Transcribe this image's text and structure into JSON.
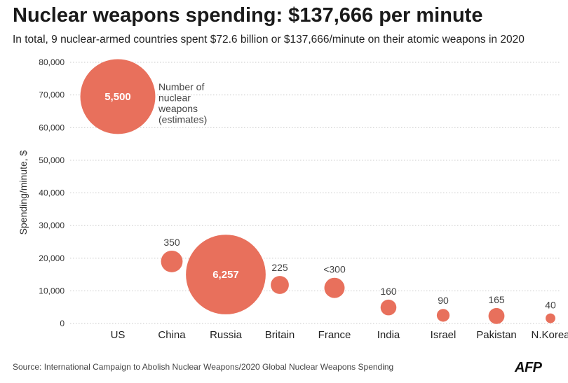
{
  "header": {
    "title": "Nuclear weapons spending: $137,666 per minute",
    "subtitle": "In total, 9 nuclear-armed countries spent $72.6 billion or $137,666/minute on their atomic weapons in 2020"
  },
  "footer": {
    "source": "Source: International Campaign to Abolish Nuclear Weapons/2020 Global Nuclear Weapons Spending",
    "logo": "AFP"
  },
  "chart_data": {
    "type": "scatter",
    "title": "Nuclear weapons spending: $137,666 per minute",
    "subtitle": "In total, 9 nuclear-armed countries spent $72.6 billion or $137,666/minute on their atomic weapons in 2020",
    "xlabel": "",
    "ylabel": "Spending/minute, $",
    "ylim": [
      0,
      80000
    ],
    "yticks": [
      0,
      10000,
      20000,
      30000,
      40000,
      50000,
      60000,
      70000,
      80000
    ],
    "ytick_labels": [
      "0",
      "10,000",
      "20,000",
      "30,000",
      "40,000",
      "50,000",
      "60,000",
      "70,000",
      "80,000"
    ],
    "grid": "horizontal dotted",
    "bubble_color": "#e8705c",
    "size_legend": "Number of nuclear weapons (estimates)",
    "size_legend_lines": [
      "Number of",
      "nuclear",
      "weapons",
      "(estimates)"
    ],
    "categories": [
      "US",
      "China",
      "Russia",
      "Britain",
      "France",
      "India",
      "Israel",
      "Pakistan",
      "N.Korea"
    ],
    "values": [
      69500,
      19000,
      15000,
      11800,
      10900,
      4900,
      2500,
      2300,
      1600
    ],
    "size_labels": [
      "5,500",
      "350",
      "6,257",
      "225",
      "<300",
      "160",
      "90",
      "165",
      "40"
    ],
    "weapons": [
      5500,
      350,
      6257,
      225,
      300,
      160,
      90,
      165,
      40
    ]
  }
}
